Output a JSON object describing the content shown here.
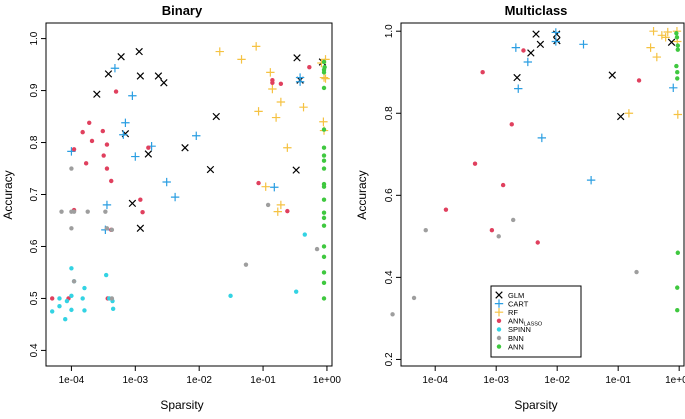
{
  "colors": {
    "GLM": "#000000",
    "CART": "#2a9ee2",
    "RF": "#f5c242",
    "ANN_LASSO": "#e0405e",
    "SPINN": "#33d3e3",
    "BNN": "#9e9e9e",
    "ANN": "#3fc83f"
  },
  "legend": {
    "items": [
      {
        "key": "GLM",
        "label": "GLM",
        "symbol": "x"
      },
      {
        "key": "CART",
        "label": "CART",
        "symbol": "+"
      },
      {
        "key": "RF",
        "label": "RF",
        "symbol": "+"
      },
      {
        "key": "ANN_LASSO",
        "label": "ANN",
        "sub": "LASSO",
        "symbol": "dot"
      },
      {
        "key": "SPINN",
        "label": "SPINN",
        "symbol": "dot"
      },
      {
        "key": "BNN",
        "label": "BNN",
        "symbol": "dot"
      },
      {
        "key": "ANN",
        "label": "ANN",
        "symbol": "dot"
      }
    ]
  },
  "chart_data": [
    {
      "type": "scatter",
      "title": "Binary",
      "xlabel": "Sparsity",
      "ylabel": "Accuracy",
      "xscale": "log10",
      "xlim": [
        4e-05,
        1.2
      ],
      "ylim": [
        0.37,
        1.03
      ],
      "xticks": [
        {
          "v": 0.0001,
          "label": "1e-04"
        },
        {
          "v": 0.001,
          "label": "1e-03"
        },
        {
          "v": 0.01,
          "label": "1e-02"
        },
        {
          "v": 0.1,
          "label": "1e-01"
        },
        {
          "v": 1,
          "label": "1e+00"
        }
      ],
      "yticks": [
        {
          "v": 0.4,
          "label": "0.4"
        },
        {
          "v": 0.5,
          "label": "0.5"
        },
        {
          "v": 0.6,
          "label": "0.6"
        },
        {
          "v": 0.7,
          "label": "0.7"
        },
        {
          "v": 0.8,
          "label": "0.8"
        },
        {
          "v": 0.9,
          "label": "0.9"
        },
        {
          "v": 1.0,
          "label": "1.0"
        }
      ],
      "series": [
        {
          "name": "GLM",
          "points": [
            [
              0.00025,
              0.893
            ],
            [
              0.00038,
              0.932
            ],
            [
              0.0006,
              0.965
            ],
            [
              0.00115,
              0.975
            ],
            [
              0.0012,
              0.928
            ],
            [
              0.0023,
              0.928
            ],
            [
              0.0028,
              0.915
            ],
            [
              0.0007,
              0.817
            ],
            [
              0.0016,
              0.778
            ],
            [
              0.0185,
              0.85
            ],
            [
              0.006,
              0.79
            ],
            [
              0.015,
              0.748
            ],
            [
              0.0009,
              0.683
            ],
            [
              0.0012,
              0.635
            ],
            [
              0.34,
              0.963
            ],
            [
              0.85,
              0.955
            ],
            [
              0.38,
              0.92
            ],
            [
              0.33,
              0.747
            ]
          ]
        },
        {
          "name": "CART",
          "points": [
            [
              0.00048,
              0.943
            ],
            [
              0.0009,
              0.89
            ],
            [
              0.0007,
              0.838
            ],
            [
              0.00065,
              0.815
            ],
            [
              0.0001,
              0.783
            ],
            [
              0.001,
              0.773
            ],
            [
              0.0018,
              0.793
            ],
            [
              0.009,
              0.813
            ],
            [
              0.0031,
              0.724
            ],
            [
              0.0042,
              0.695
            ],
            [
              0.00036,
              0.68
            ],
            [
              0.00034,
              0.632
            ],
            [
              0.38,
              0.925
            ],
            [
              0.38,
              0.917
            ],
            [
              0.15,
              0.714
            ]
          ]
        },
        {
          "name": "RF",
          "points": [
            [
              0.021,
              0.975
            ],
            [
              0.078,
              0.985
            ],
            [
              0.046,
              0.96
            ],
            [
              0.13,
              0.935
            ],
            [
              0.14,
              0.903
            ],
            [
              0.19,
              0.878
            ],
            [
              0.085,
              0.86
            ],
            [
              0.16,
              0.848
            ],
            [
              0.24,
              0.79
            ],
            [
              0.43,
              0.868
            ],
            [
              0.88,
              0.84
            ],
            [
              0.9,
              0.823
            ],
            [
              0.82,
              0.953
            ],
            [
              0.95,
              0.96
            ],
            [
              0.9,
              0.925
            ],
            [
              0.95,
              0.923
            ],
            [
              0.11,
              0.715
            ],
            [
              0.19,
              0.68
            ],
            [
              0.17,
              0.667
            ]
          ]
        },
        {
          "name": "ANN_LASSO",
          "points": [
            [
              0.00015,
              0.82
            ],
            [
              0.00021,
              0.803
            ],
            [
              0.00019,
              0.838
            ],
            [
              0.00031,
              0.822
            ],
            [
              0.00036,
              0.796
            ],
            [
              0.00032,
              0.775
            ],
            [
              0.00036,
              0.75
            ],
            [
              0.00042,
              0.726
            ],
            [
              0.00017,
              0.76
            ],
            [
              0.00011,
              0.787
            ],
            [
              0.0005,
              0.898
            ],
            [
              0.0016,
              0.79
            ],
            [
              0.0013,
              0.666
            ],
            [
              0.0012,
              0.69
            ],
            [
              0.00042,
              0.632
            ],
            [
              0.00037,
              0.5
            ],
            [
              0.00011,
              0.67
            ],
            [
              9e-05,
              0.5
            ],
            [
              5e-05,
              0.5
            ],
            [
              0.085,
              0.722
            ],
            [
              0.14,
              0.92
            ],
            [
              0.14,
              0.915
            ],
            [
              0.19,
              0.913
            ],
            [
              0.24,
              0.668
            ],
            [
              0.53,
              0.945
            ]
          ]
        },
        {
          "name": "SPINN",
          "points": [
            [
              0.0001,
              0.558
            ],
            [
              0.00011,
              0.533
            ],
            [
              0.0001,
              0.505
            ],
            [
              8.5e-05,
              0.495
            ],
            [
              6.5e-05,
              0.485
            ],
            [
              5e-05,
              0.475
            ],
            [
              6.5e-05,
              0.5
            ],
            [
              8e-05,
              0.46
            ],
            [
              0.0001,
              0.478
            ],
            [
              0.00016,
              0.52
            ],
            [
              0.00015,
              0.5
            ],
            [
              0.00016,
              0.477
            ],
            [
              0.00035,
              0.545
            ],
            [
              0.00039,
              0.5
            ],
            [
              0.00044,
              0.495
            ],
            [
              0.00045,
              0.48
            ],
            [
              0.031,
              0.505
            ],
            [
              0.33,
              0.513
            ],
            [
              0.45,
              0.623
            ]
          ]
        },
        {
          "name": "BNN",
          "points": [
            [
              7e-05,
              0.667
            ],
            [
              0.0001,
              0.75
            ],
            [
              0.0001,
              0.667
            ],
            [
              0.0001,
              0.635
            ],
            [
              0.00011,
              0.667
            ],
            [
              0.00011,
              0.533
            ],
            [
              0.00018,
              0.667
            ],
            [
              0.00034,
              0.667
            ],
            [
              0.00036,
              0.635
            ],
            [
              0.00043,
              0.632
            ],
            [
              0.00043,
              0.5
            ],
            [
              0.054,
              0.565
            ],
            [
              0.12,
              0.68
            ],
            [
              0.7,
              0.595
            ]
          ]
        },
        {
          "name": "ANN",
          "points": [
            [
              0.9,
              0.955
            ],
            [
              0.92,
              0.945
            ],
            [
              0.9,
              0.94
            ],
            [
              0.9,
              0.935
            ],
            [
              0.9,
              0.905
            ],
            [
              0.9,
              0.825
            ],
            [
              0.9,
              0.79
            ],
            [
              0.9,
              0.775
            ],
            [
              0.9,
              0.765
            ],
            [
              0.9,
              0.75
            ],
            [
              0.9,
              0.72
            ],
            [
              0.9,
              0.715
            ],
            [
              0.9,
              0.69
            ],
            [
              0.9,
              0.665
            ],
            [
              0.9,
              0.655
            ],
            [
              0.9,
              0.64
            ],
            [
              0.9,
              0.6
            ],
            [
              0.9,
              0.58
            ],
            [
              0.9,
              0.55
            ],
            [
              0.9,
              0.53
            ],
            [
              0.9,
              0.5
            ]
          ]
        }
      ]
    },
    {
      "type": "scatter",
      "title": "Multiclass",
      "xlabel": "Sparsity",
      "ylabel": "Accuracy",
      "xscale": "log10",
      "xlim": [
        2.75e-05,
        1.2
      ],
      "ylim": [
        0.184,
        1.02
      ],
      "xticks": [
        {
          "v": 0.0001,
          "label": "1e-04"
        },
        {
          "v": 0.001,
          "label": "1e-03"
        },
        {
          "v": 0.01,
          "label": "1e-02"
        },
        {
          "v": 0.1,
          "label": "1e-01"
        },
        {
          "v": 1,
          "label": "1e+00"
        }
      ],
      "yticks": [
        {
          "v": 0.2,
          "label": "0.2"
        },
        {
          "v": 0.4,
          "label": "0.4"
        },
        {
          "v": 0.6,
          "label": "0.6"
        },
        {
          "v": 0.8,
          "label": "0.8"
        },
        {
          "v": 1.0,
          "label": "1.0"
        }
      ],
      "series": [
        {
          "name": "GLM",
          "points": [
            [
              0.0022,
              0.887
            ],
            [
              0.0037,
              0.947
            ],
            [
              0.0045,
              0.993
            ],
            [
              0.0053,
              0.968
            ],
            [
              0.0098,
              0.993
            ],
            [
              0.0099,
              0.977
            ],
            [
              0.08,
              0.893
            ],
            [
              0.11,
              0.792
            ],
            [
              0.75,
              0.973
            ]
          ]
        },
        {
          "name": "CART",
          "points": [
            [
              0.0021,
              0.96
            ],
            [
              0.0023,
              0.86
            ],
            [
              0.0033,
              0.925
            ],
            [
              0.0056,
              0.74
            ],
            [
              0.0095,
              0.997
            ],
            [
              0.0095,
              0.975
            ],
            [
              0.027,
              0.968
            ],
            [
              0.036,
              0.637
            ],
            [
              0.8,
              0.862
            ]
          ]
        },
        {
          "name": "RF",
          "points": [
            [
              0.15,
              0.8
            ],
            [
              0.34,
              0.96
            ],
            [
              0.38,
              1.0
            ],
            [
              0.43,
              0.937
            ],
            [
              0.52,
              0.99
            ],
            [
              0.6,
              0.985
            ],
            [
              0.65,
              0.998
            ],
            [
              0.95,
              0.797
            ],
            [
              0.92,
              1.0
            ],
            [
              0.93,
              0.975
            ]
          ]
        },
        {
          "name": "ANN_LASSO",
          "points": [
            [
              0.00015,
              0.565
            ],
            [
              0.0006,
              0.9
            ],
            [
              0.00045,
              0.677
            ],
            [
              0.00085,
              0.515
            ],
            [
              0.0013,
              0.625
            ],
            [
              0.0018,
              0.773
            ],
            [
              0.0028,
              0.953
            ],
            [
              0.0048,
              0.485
            ],
            [
              0.22,
              0.88
            ]
          ]
        },
        {
          "name": "SPINN",
          "points": []
        },
        {
          "name": "BNN",
          "points": [
            [
              2e-05,
              0.31
            ],
            [
              4.5e-05,
              0.35
            ],
            [
              7e-05,
              0.515
            ],
            [
              0.0011,
              0.5
            ],
            [
              0.0019,
              0.54
            ],
            [
              0.2,
              0.413
            ]
          ]
        },
        {
          "name": "ANN",
          "points": [
            [
              0.9,
              0.995
            ],
            [
              0.92,
              0.985
            ],
            [
              0.95,
              0.965
            ],
            [
              0.95,
              0.955
            ],
            [
              0.9,
              0.915
            ],
            [
              0.93,
              0.9
            ],
            [
              0.93,
              0.885
            ],
            [
              0.95,
              0.46
            ],
            [
              0.93,
              0.375
            ],
            [
              0.93,
              0.32
            ]
          ]
        }
      ]
    }
  ]
}
